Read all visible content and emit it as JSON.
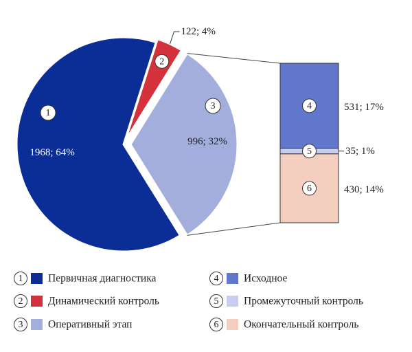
{
  "chart_data": {
    "type": "bar-of-pie",
    "pie": {
      "slices": [
        {
          "id": 1,
          "marker": "1",
          "name": "Первичная диагностика",
          "value": 1968,
          "percent": 64,
          "label": "1968; 64%",
          "color": "#0a2d96"
        },
        {
          "id": 2,
          "marker": "2",
          "name": "Динамический контроль",
          "value": 122,
          "percent": 4,
          "label": "122; 4%",
          "color": "#d3323c"
        },
        {
          "id": 3,
          "marker": "3",
          "name": "Оперативный этап",
          "value": 996,
          "percent": 32,
          "label": "996; 32%",
          "color": "#a3aedd",
          "exploded_to_bar": true
        }
      ]
    },
    "bar": {
      "parent_slice": 3,
      "segments": [
        {
          "id": 4,
          "marker": "4",
          "name": "Исходное",
          "value": 531,
          "percent": 17,
          "label": "531; 17%",
          "color": "#6177cc"
        },
        {
          "id": 5,
          "marker": "5",
          "name": "Промежуточный контроль",
          "value": 35,
          "percent": 1,
          "label": "35; 1%",
          "color": "#c9cdef"
        },
        {
          "id": 6,
          "marker": "6",
          "name": "Окончательный контроль",
          "value": 430,
          "percent": 14,
          "label": "430; 14%",
          "color": "#f4cfc0"
        }
      ]
    },
    "legend": {
      "placement": "bottom",
      "entries": [
        {
          "marker": "1",
          "name": "Первичная диагностика",
          "color": "#0a2d96"
        },
        {
          "marker": "2",
          "name": "Динамический контроль",
          "color": "#d3323c"
        },
        {
          "marker": "3",
          "name": "Оперативный этап",
          "color": "#a3aedd"
        },
        {
          "marker": "4",
          "name": "Исходное",
          "color": "#6177cc"
        },
        {
          "marker": "5",
          "name": "Промежуточный контроль",
          "color": "#c9cdef"
        },
        {
          "marker": "6",
          "name": "Окончательный контроль",
          "color": "#f4cfc0"
        }
      ]
    }
  }
}
